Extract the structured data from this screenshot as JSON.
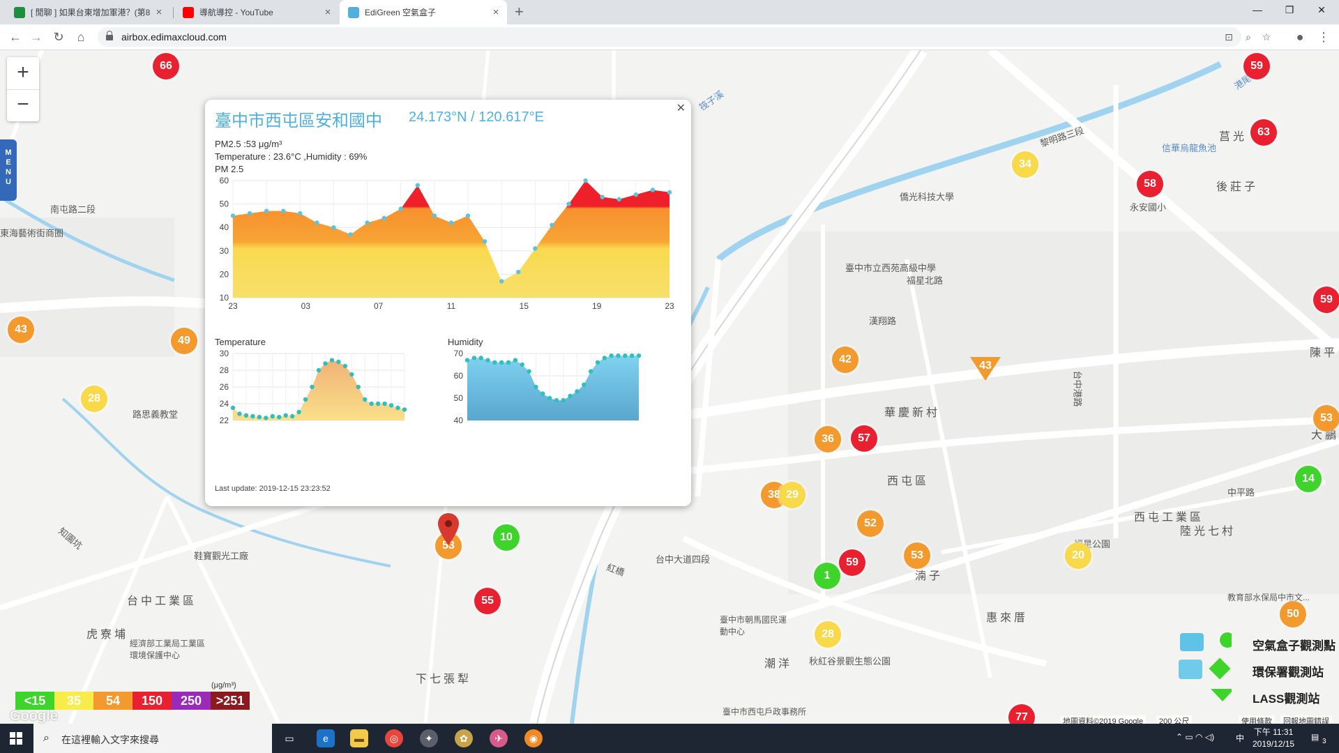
{
  "browser": {
    "tabs": [
      {
        "title": "[ 閒聊 ] 如果台東增加軍港？(第8",
        "icon": "sheet-icon",
        "color": "#1e8e3e"
      },
      {
        "title": "導航導控 - YouTube",
        "icon": "youtube-icon",
        "color": "#ff0000"
      },
      {
        "title": "EdiGreen 空氣盒子",
        "icon": "edigreen-icon",
        "color": "#4fb0e0"
      }
    ],
    "url": "airbox.edimaxcloud.com"
  },
  "map": {
    "menu_label": "MENU",
    "labels": [
      {
        "text": "南屯路二段",
        "cls": ""
      },
      {
        "text": "東海藝術街商圈",
        "cls": ""
      },
      {
        "text": "永安國小",
        "cls": ""
      },
      {
        "text": "路思義教堂",
        "cls": ""
      },
      {
        "text": "知園坑",
        "cls": ""
      },
      {
        "text": "鞋寶觀光工廠",
        "cls": ""
      },
      {
        "text": "台中工業區",
        "cls": "big"
      },
      {
        "text": "虎寮埔",
        "cls": "big"
      },
      {
        "text": "經濟部工業局工業區環境保護中心",
        "cls": ""
      },
      {
        "text": "下七張犁",
        "cls": "big"
      },
      {
        "text": "臺中市朝馬國民運動中心",
        "cls": ""
      },
      {
        "text": "潮洋",
        "cls": "big"
      },
      {
        "text": "秋紅谷景觀生態公園",
        "cls": ""
      },
      {
        "text": "華慶新村",
        "cls": "big"
      },
      {
        "text": "西屯區",
        "cls": "big"
      },
      {
        "text": "西屯工業區",
        "cls": "big"
      },
      {
        "text": "陸光七村",
        "cls": "big"
      },
      {
        "text": "福星公園",
        "cls": ""
      },
      {
        "text": "惠來厝",
        "cls": "big"
      },
      {
        "text": "湳子",
        "cls": "big"
      },
      {
        "text": "後莊子",
        "cls": "big"
      },
      {
        "text": "信華烏龍魚池",
        "cls": "blue"
      },
      {
        "text": "黎明路三段",
        "cls": ""
      },
      {
        "text": "港尾子溪",
        "cls": "blue"
      },
      {
        "text": "筏子溪",
        "cls": "blue"
      },
      {
        "text": "僑光科技大學",
        "cls": ""
      },
      {
        "text": "臺中市立西苑高級中學",
        "cls": ""
      },
      {
        "text": "漢翔路",
        "cls": ""
      },
      {
        "text": "福星北路",
        "cls": ""
      },
      {
        "text": "中平路",
        "cls": ""
      },
      {
        "text": "台中港路",
        "cls": ""
      },
      {
        "text": "紅橋",
        "cls": ""
      },
      {
        "text": "台中大道四段",
        "cls": ""
      },
      {
        "text": "臺中市西屯戶政事務所",
        "cls": ""
      },
      {
        "text": "教育部水保局中市文...",
        "cls": ""
      },
      {
        "text": "莒光",
        "cls": "big"
      },
      {
        "text": "陳平",
        "cls": "big"
      },
      {
        "text": "大鵬",
        "cls": "big"
      }
    ],
    "markers": [
      {
        "value": "66",
        "color": "red"
      },
      {
        "value": "43",
        "color": "orange"
      },
      {
        "value": "49",
        "color": "orange"
      },
      {
        "value": "28",
        "color": "yellow"
      },
      {
        "value": "53",
        "color": "orange"
      },
      {
        "value": "10",
        "color": "green"
      },
      {
        "value": "55",
        "color": "red"
      },
      {
        "value": "34",
        "color": "yellow"
      },
      {
        "value": "42",
        "color": "orange"
      },
      {
        "value": "36",
        "color": "orange"
      },
      {
        "value": "57",
        "color": "red"
      },
      {
        "value": "38",
        "color": "orange"
      },
      {
        "value": "29",
        "color": "yellow"
      },
      {
        "value": "52",
        "color": "orange"
      },
      {
        "value": "59",
        "color": "red"
      },
      {
        "value": "1",
        "color": "green"
      },
      {
        "value": "53",
        "color": "orange"
      },
      {
        "value": "20",
        "color": "yellow"
      },
      {
        "value": "28",
        "color": "yellow"
      },
      {
        "value": "59",
        "color": "red"
      },
      {
        "value": "63",
        "color": "red"
      },
      {
        "value": "58",
        "color": "red"
      },
      {
        "value": "59",
        "color": "red"
      },
      {
        "value": "53",
        "color": "orange"
      },
      {
        "value": "14",
        "color": "green"
      },
      {
        "value": "50",
        "color": "orange"
      },
      {
        "value": "77",
        "color": "red"
      }
    ],
    "triangle_marker": "43"
  },
  "popup": {
    "title": "臺中市西屯區安和國中",
    "coords": "24.173°N / 120.617°E",
    "pm25_line": "PM2.5 :53 μg/m³",
    "env_line": "Temperature : 23.6°C ,Humidity : 69%",
    "last_update": "Last update: 2019-12-15 23:23:52"
  },
  "chart_data": [
    {
      "type": "area",
      "title": "PM 2.5",
      "x_ticks": [
        "23",
        "03",
        "07",
        "11",
        "15",
        "19",
        "23"
      ],
      "ylim": [
        10,
        60
      ],
      "y_ticks": [
        10,
        20,
        30,
        40,
        50,
        60
      ],
      "values": [
        45,
        46,
        47,
        47,
        46,
        42,
        40,
        37,
        42,
        44,
        48,
        58,
        45,
        42,
        45,
        34,
        17,
        21,
        31,
        41,
        50,
        60,
        53,
        52,
        54,
        56,
        55
      ]
    },
    {
      "type": "area",
      "title": "Temperature",
      "ylim": [
        22,
        30
      ],
      "y_ticks": [
        22,
        24,
        26,
        28,
        30
      ],
      "values": [
        23.5,
        22.8,
        22.6,
        22.5,
        22.4,
        22.3,
        22.5,
        22.4,
        22.6,
        22.5,
        23.0,
        24.5,
        26.0,
        28.0,
        28.8,
        29.2,
        29.0,
        28.5,
        27.5,
        26.0,
        24.5,
        24.0,
        24.0,
        24.0,
        23.8,
        23.5,
        23.3
      ]
    },
    {
      "type": "area",
      "title": "Humidity",
      "ylim": [
        40,
        70
      ],
      "y_ticks": [
        40,
        50,
        60,
        70
      ],
      "values": [
        67,
        68,
        68,
        67,
        66,
        66,
        66,
        67,
        65,
        62,
        55,
        52,
        50,
        49,
        49,
        51,
        53,
        56,
        62,
        66,
        68,
        69,
        69,
        69,
        69,
        69
      ]
    }
  ],
  "aq_legend": {
    "items": [
      {
        "label": "<15",
        "color": "#3fd42b"
      },
      {
        "label": "35",
        "color": "#f7ec4a"
      },
      {
        "label": "54",
        "color": "#f39a2e"
      },
      {
        "label": "150",
        "color": "#e8202f"
      },
      {
        "label": "250",
        "color": "#9a2bb8"
      },
      {
        "label": ">251",
        "color": "#8a1a1f"
      }
    ],
    "unit": "(μg/m³)"
  },
  "type_legend": [
    "空氣盒子觀測點",
    "環保署觀測站",
    "LASS觀測站"
  ],
  "attribution": {
    "data": "地圖資料©2019 Google",
    "scale": "200 公尺",
    "terms": "使用條款",
    "report": "回報地圖錯誤",
    "google": "Google"
  },
  "taskbar": {
    "search_placeholder": "在這裡輸入文字來搜尋",
    "time": "下午 11:31",
    "date": "2019/12/15",
    "ime": "中",
    "notification_count": "3"
  }
}
